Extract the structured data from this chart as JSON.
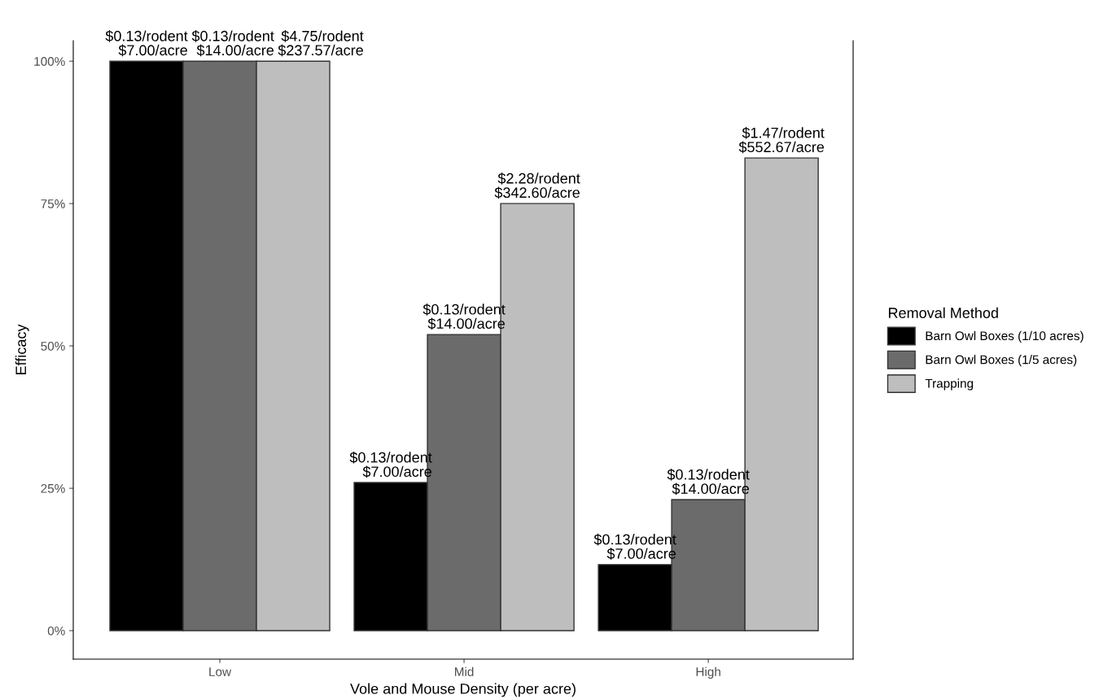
{
  "chart_data": {
    "type": "bar",
    "xlabel": "Vole and Mouse Density (per acre)",
    "ylabel": "Efficacy",
    "legend_title": "Removal Method",
    "categories": [
      "Low",
      "Mid",
      "High"
    ],
    "series": [
      {
        "name": "Barn Owl Boxes (1/10 acres)",
        "color": "#000000",
        "values": [
          100,
          26,
          11.6
        ],
        "value_labels": [
          "$0.13/rodent\n$7.00/acre",
          "$0.13/rodent\n$7.00/acre",
          "$0.13/rodent\n$7.00/acre"
        ]
      },
      {
        "name": "Barn Owl Boxes (1/5 acres)",
        "color": "#6b6b6b",
        "values": [
          100,
          52,
          23
        ],
        "value_labels": [
          "$0.13/rodent\n$14.00/acre",
          "$0.13/rodent\n$14.00/acre",
          "$0.13/rodent\n$14.00/acre"
        ]
      },
      {
        "name": "Trapping",
        "color": "#bebebe",
        "values": [
          100,
          75,
          83
        ],
        "value_labels": [
          "$4.75/rodent\n$237.57/acre",
          "$2.28/rodent\n$342.60/acre",
          "$1.47/rodent\n$552.67/acre"
        ]
      }
    ],
    "ylim": [
      -5,
      103.6
    ],
    "yticks": [
      {
        "value": 0,
        "label": "0%"
      },
      {
        "value": 25,
        "label": "25%"
      },
      {
        "value": 50,
        "label": "50%"
      },
      {
        "value": 75,
        "label": "75%"
      },
      {
        "value": 100,
        "label": "100%"
      }
    ],
    "grid": false,
    "legend": "right"
  }
}
